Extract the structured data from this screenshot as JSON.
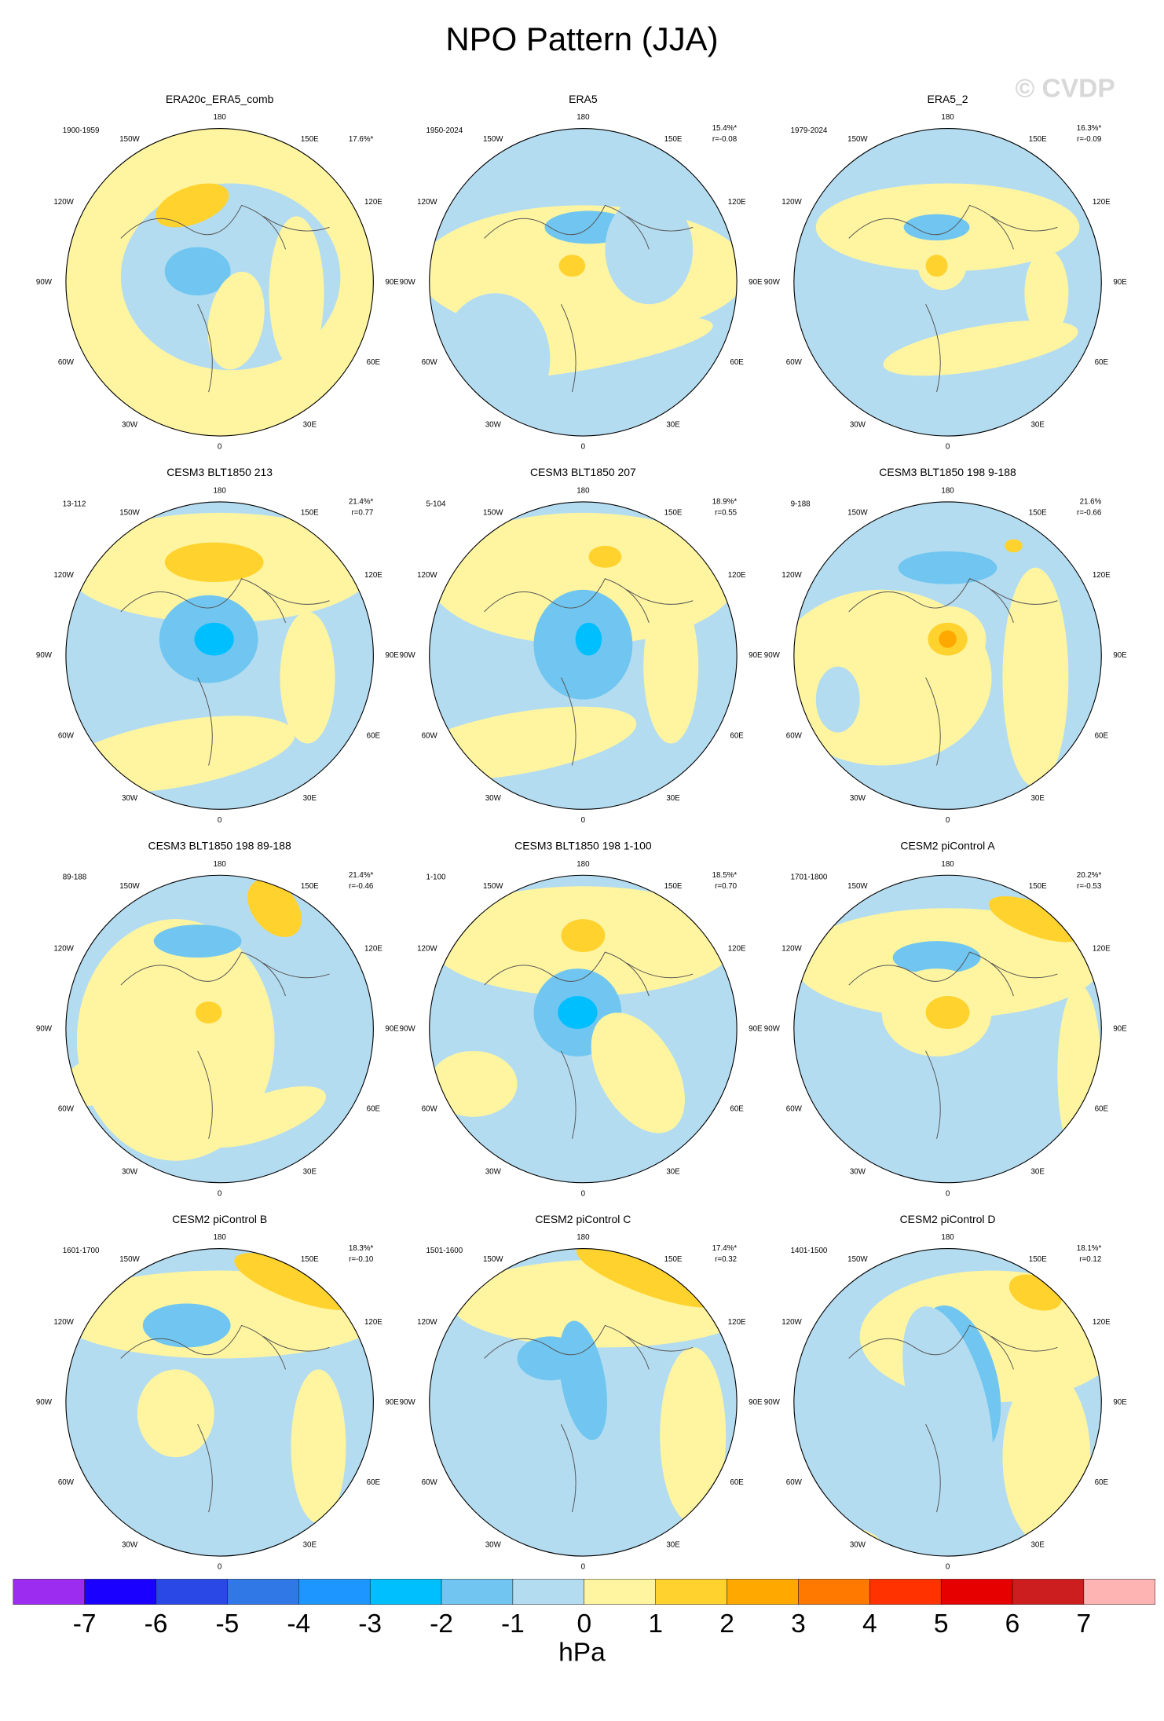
{
  "title": "NPO Pattern (JJA)",
  "watermark": "© CVDP",
  "lon_labels": [
    "180",
    "150E",
    "120E",
    "90E",
    "60E",
    "30E",
    "0",
    "30W",
    "60W",
    "90W",
    "120W",
    "150W"
  ],
  "panels": [
    {
      "title": "ERA20c_ERA5_comb",
      "period": "1900-1959",
      "pct": "17.6%*"
    },
    {
      "title": "ERA5",
      "period": "1950-2024",
      "pct": "15.4%*",
      "r": "r=-0.08"
    },
    {
      "title": "ERA5_2",
      "period": "1979-2024",
      "pct": "16.3%*",
      "r": "r=-0.09"
    },
    {
      "title": "CESM3 BLT1850 213",
      "period": "13-112",
      "pct": "21.4%*",
      "r": "r=0.77"
    },
    {
      "title": "CESM3 BLT1850 207",
      "period": "5-104",
      "pct": "18.9%*",
      "r": "r=0.55"
    },
    {
      "title": "CESM3 BLT1850 198 9-188",
      "period": "9-188",
      "pct": "21.6%",
      "r": "r=-0.66"
    },
    {
      "title": "CESM3 BLT1850 198 89-188",
      "period": "89-188",
      "pct": "21.4%*",
      "r": "r=-0.46"
    },
    {
      "title": "CESM3 BLT1850 198 1-100",
      "period": "1-100",
      "pct": "18.5%*",
      "r": "r=0.70"
    },
    {
      "title": "CESM2 piControl A",
      "period": "1701-1800",
      "pct": "20.2%*",
      "r": "r=-0.53"
    },
    {
      "title": "CESM2 piControl B",
      "period": "1601-1700",
      "pct": "18.3%*",
      "r": "r=-0.10"
    },
    {
      "title": "CESM2 piControl C",
      "period": "1501-1600",
      "pct": "17.4%*",
      "r": "r=0.32"
    },
    {
      "title": "CESM2 piControl D",
      "period": "1401-1500",
      "pct": "18.1%*",
      "r": "r=0.12"
    }
  ],
  "colorbar": {
    "colors": [
      "#9b2cf0",
      "#1a00ff",
      "#2a48e6",
      "#2f78e6",
      "#1e96ff",
      "#00bfff",
      "#70c6f0",
      "#b4dcf0",
      "#fff5a0",
      "#ffd22e",
      "#ffa800",
      "#ff7800",
      "#ff3200",
      "#e60000",
      "#cc1e1e",
      "#ffb4b4"
    ],
    "ticks": [
      -7,
      -6,
      -5,
      -4,
      -3,
      -2,
      -1,
      0,
      1,
      2,
      3,
      4,
      5,
      6,
      7
    ],
    "unit": "hPa"
  }
}
